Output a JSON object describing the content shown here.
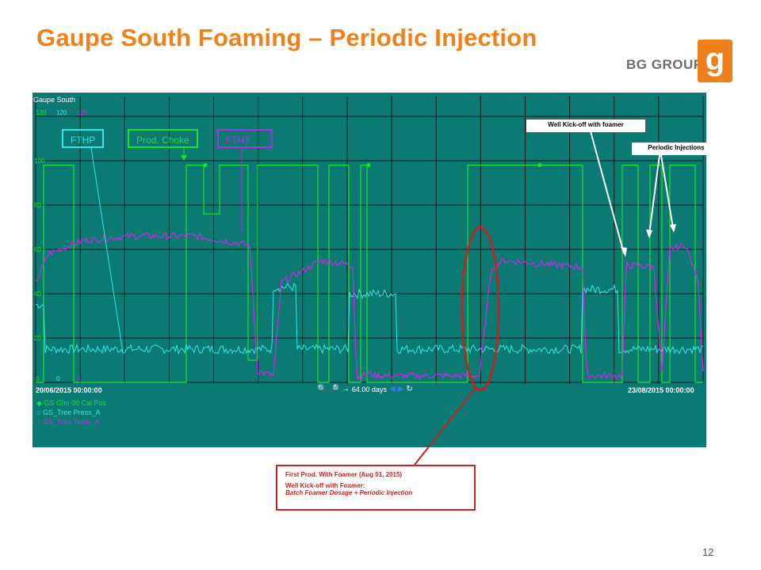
{
  "slide": {
    "title": "Gaupe South Foaming – Periodic Injection",
    "page_number": "12"
  },
  "brand": {
    "name": "BG GROUP",
    "logo_letter": "g",
    "accent_color": "#f0801a"
  },
  "trend": {
    "panel_title": "Gaupe South",
    "y_axis_max_labels": [
      "120",
      "120",
      "120"
    ],
    "y_ticks": [
      "100",
      "80",
      "60",
      "40",
      "20"
    ],
    "y_axis_min_labels": [
      "0",
      "0",
      "0"
    ],
    "time_start": "20/06/2015 00:00:00",
    "time_end": "23/08/2015 00:00:00",
    "span_label": "64.00 days",
    "legend": [
      {
        "label": "GS Cho 00 Cal Pos",
        "color": "#1fe02c"
      },
      {
        "label": "GS_Tree Press_A",
        "color": "#33e6e6"
      },
      {
        "label": "GS_Tree Temp_A",
        "color": "#d126e6"
      }
    ],
    "tags": [
      {
        "label": "FTHP",
        "color": "#33e6e6"
      },
      {
        "label": "Prod. Choke",
        "color": "#1fe02c"
      },
      {
        "label": "FTHT",
        "color": "#b030e0"
      }
    ],
    "colors": {
      "panel": "#0a7a73",
      "grid": "#1b1b1b",
      "choke": "#1fe02c",
      "press": "#33e6e6",
      "temp": "#d126e6"
    }
  },
  "callouts": {
    "kickoff": "Well Kick-off with foamer",
    "periodic": "Periodic Injections"
  },
  "note": {
    "line1": "First Prod. With Foamer (Aug 01, 2015)",
    "line2": "Well Kick-off with Foamer:",
    "line3": "Batch Foamer Dosage + Periodic Injection"
  }
}
